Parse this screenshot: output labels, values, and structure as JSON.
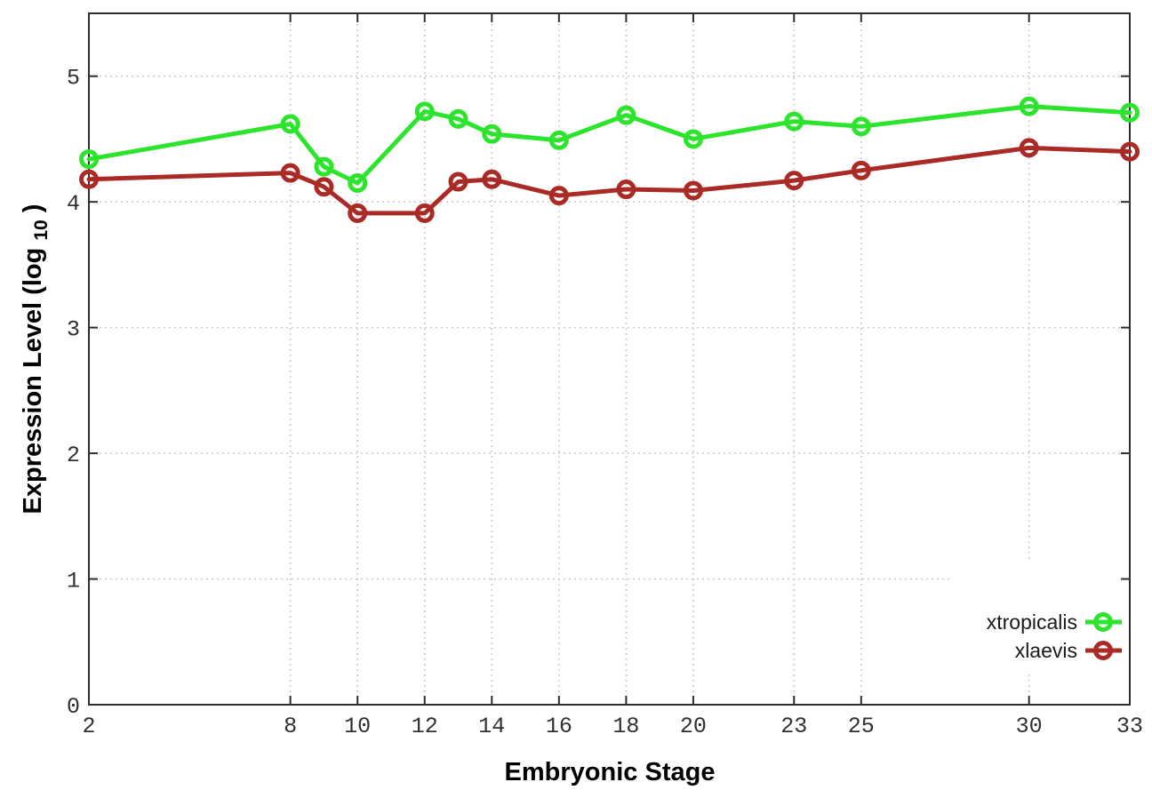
{
  "chart_data": {
    "type": "line",
    "x": [
      2,
      8,
      9,
      10,
      12,
      13,
      14,
      16,
      18,
      20,
      23,
      25,
      30,
      33
    ],
    "series": [
      {
        "name": "xtropicalis",
        "color": "#2ce42c",
        "values": [
          4.34,
          4.62,
          4.28,
          4.15,
          4.72,
          4.66,
          4.54,
          4.49,
          4.69,
          4.5,
          4.64,
          4.6,
          4.76,
          4.71
        ]
      },
      {
        "name": "xlaevis",
        "color": "#aa2b26",
        "values": [
          4.18,
          4.23,
          4.12,
          3.91,
          3.91,
          4.16,
          4.18,
          4.05,
          4.1,
          4.09,
          4.17,
          4.25,
          4.43,
          4.4
        ]
      }
    ],
    "xlabel": "Embryonic Stage",
    "ylabel": "Expression Level (log10)",
    "ylabel_main": "Expression Level (log",
    "ylabel_sub": "10",
    "ylabel_close": ")",
    "xticks": [
      2,
      8,
      10,
      12,
      14,
      16,
      18,
      20,
      23,
      25,
      30,
      33
    ],
    "yticks": [
      0,
      1,
      2,
      3,
      4,
      5
    ],
    "xlim": [
      2,
      33
    ],
    "ylim": [
      0,
      5.5
    ],
    "grid": true,
    "legend_position": "inside-bottom-right",
    "marker": "open-circle",
    "colors": {
      "grid": "#c9c9c9",
      "border": "#2e2e2e",
      "tick_label": "#303030",
      "title": "#000000",
      "background": "#ffffff"
    }
  }
}
